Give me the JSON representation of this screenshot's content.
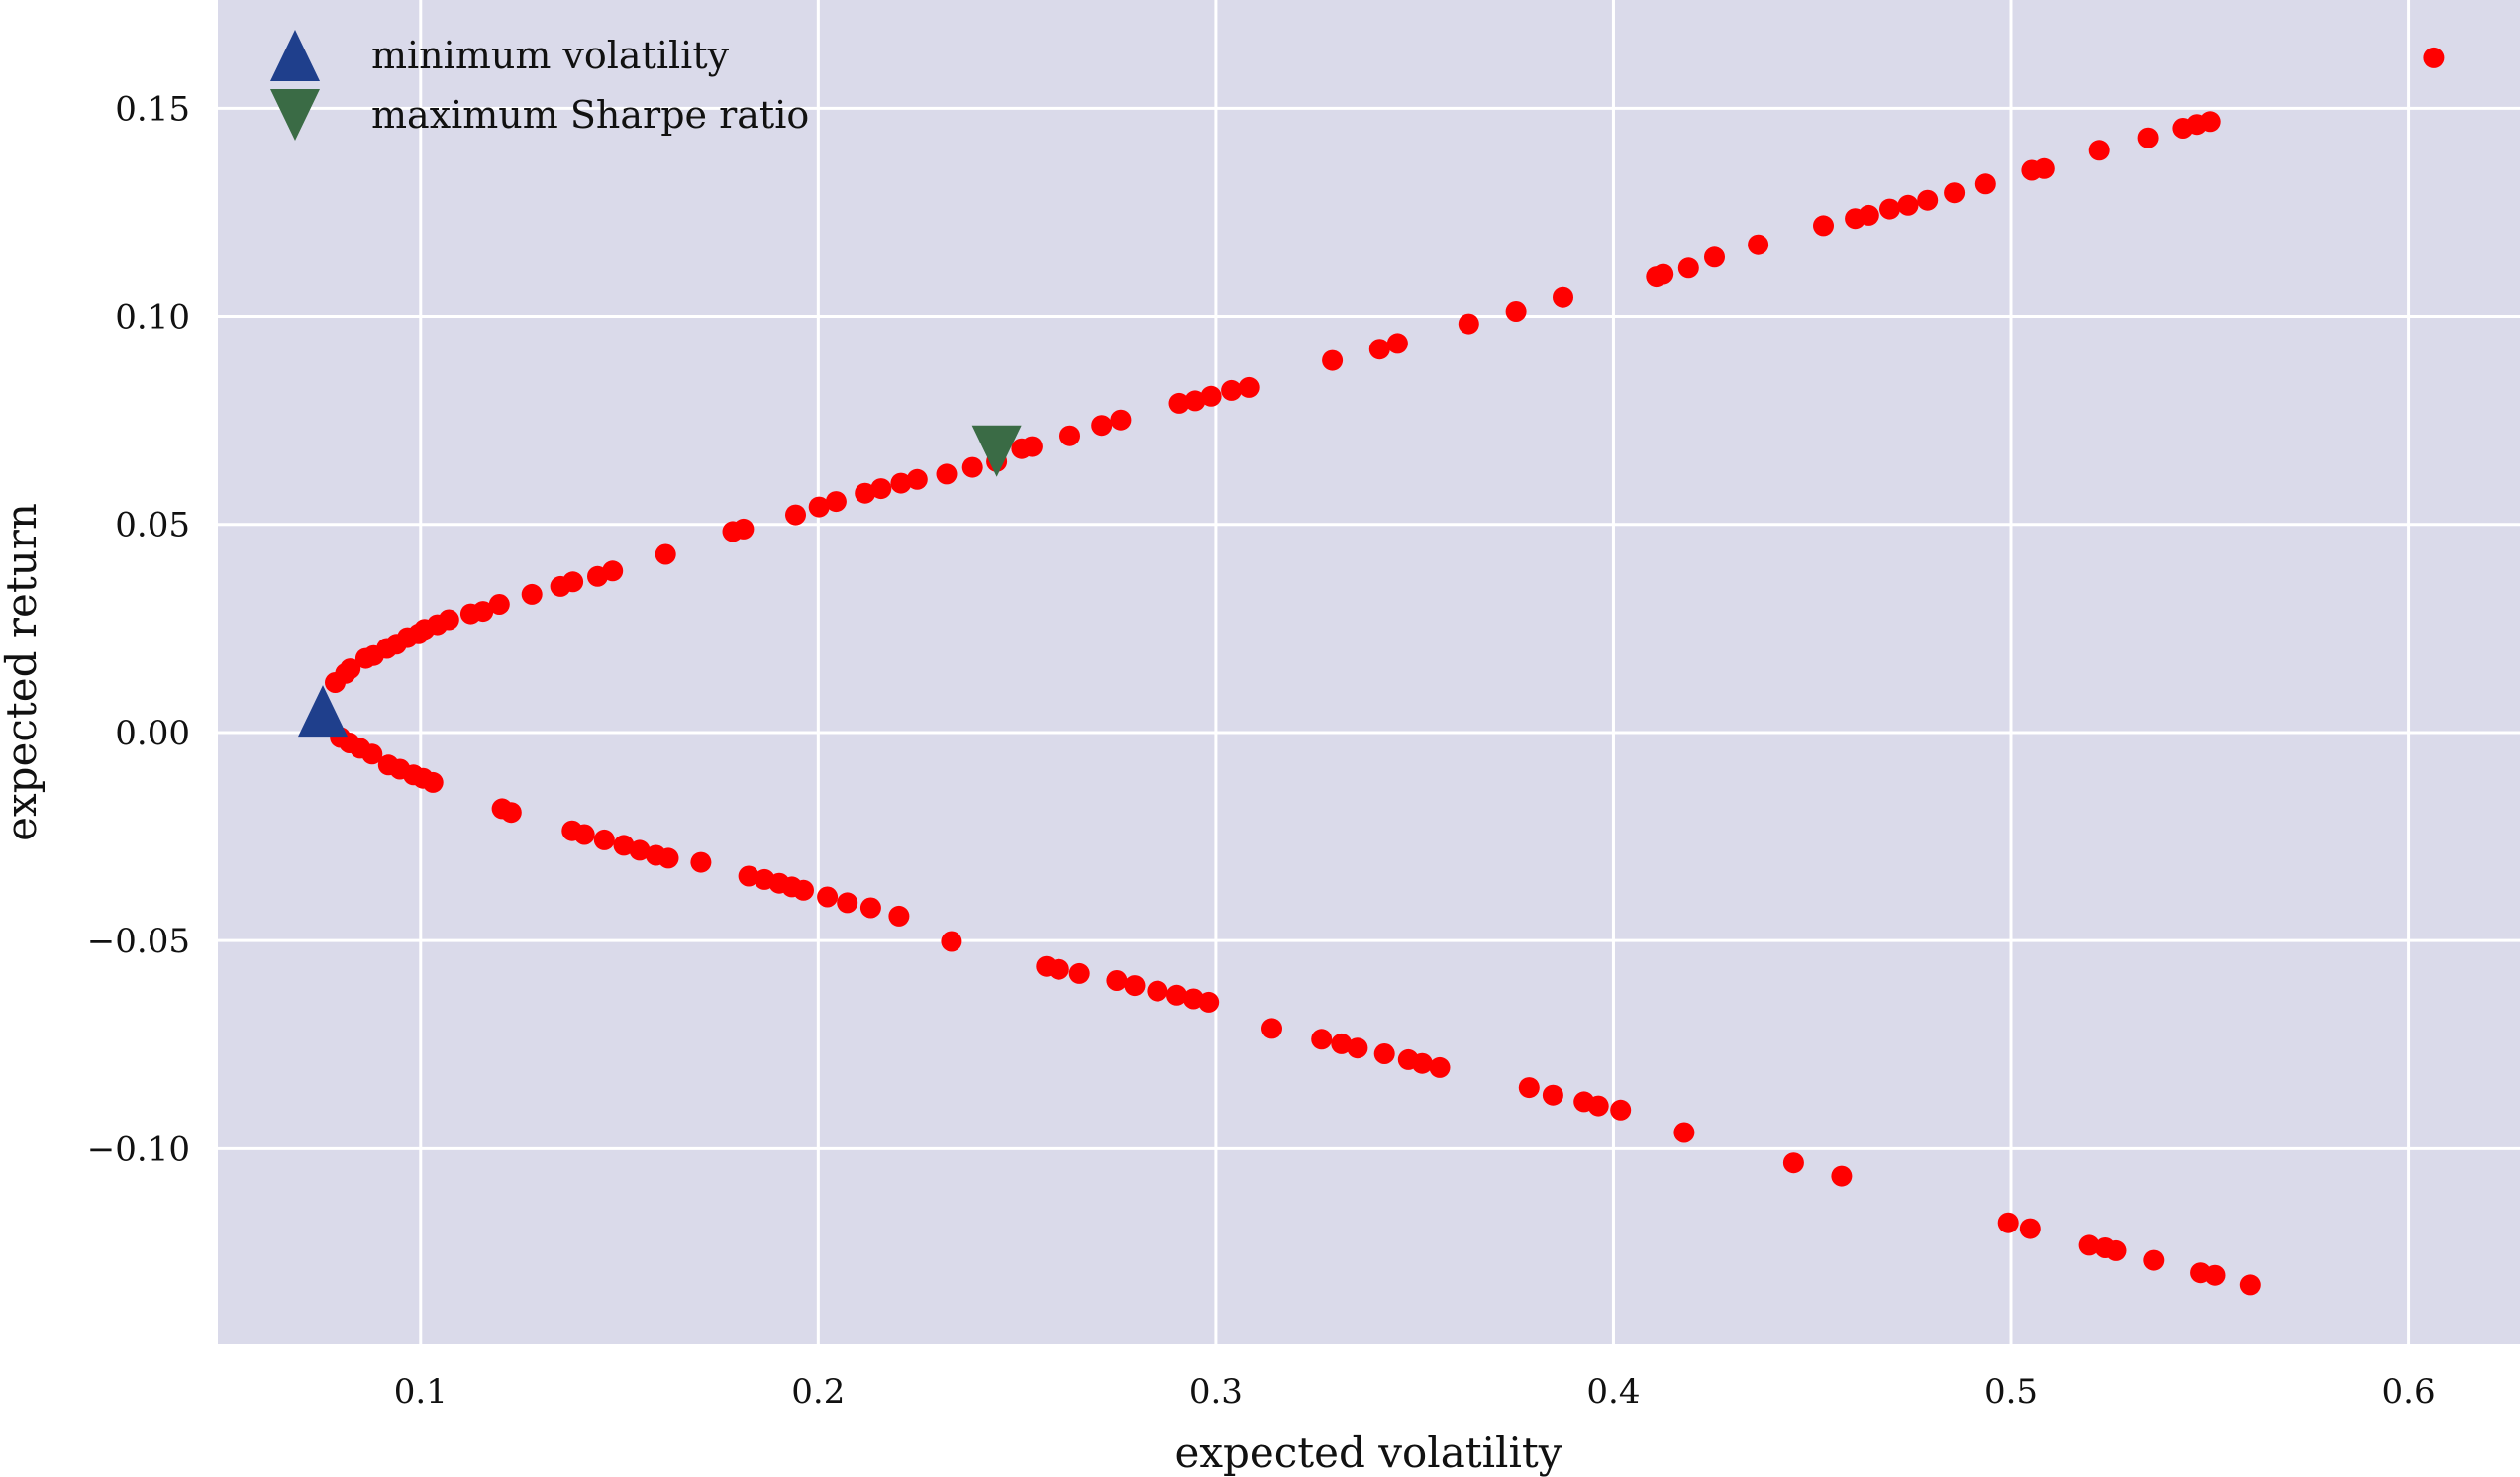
{
  "chart_data": {
    "type": "scatter",
    "xlabel": "expected volatility",
    "ylabel": "expected return",
    "xlim": [
      0.049,
      0.628
    ],
    "ylim": [
      -0.147,
      0.176
    ],
    "xticks": [
      0.1,
      0.2,
      0.3,
      0.4,
      0.5,
      0.6
    ],
    "xtick_labels": [
      "0.1",
      "0.2",
      "0.3",
      "0.4",
      "0.5",
      "0.6"
    ],
    "yticks": [
      -0.1,
      -0.05,
      0.0,
      0.05,
      0.1,
      0.15
    ],
    "ytick_labels": [
      "−0.10",
      "−0.05",
      "0.00",
      "0.05",
      "0.10",
      "0.15"
    ],
    "grid": true,
    "background_color": "#dadaea",
    "legend_position": "top-left",
    "legend": [
      {
        "label": "minimum volatility",
        "marker": "triangle-up",
        "color": "#1f3f8c"
      },
      {
        "label": "maximum Sharpe ratio",
        "marker": "triangle-down",
        "color": "#3a6b45"
      }
    ],
    "special_points": {
      "min_volatility": {
        "x": 0.0754,
        "y": 0.0052,
        "color": "#1f3f8c"
      },
      "max_sharpe": {
        "x": 0.2449,
        "y": 0.0676,
        "color": "#3a6b45"
      }
    },
    "point_color": "#ff0000",
    "series": [
      {
        "values": [
          [
            0.0785,
            0.012
          ],
          [
            0.0811,
            0.0142
          ],
          [
            0.0823,
            0.0153
          ],
          [
            0.0862,
            0.0178
          ],
          [
            0.0882,
            0.0185
          ],
          [
            0.0915,
            0.0202
          ],
          [
            0.0939,
            0.0212
          ],
          [
            0.0967,
            0.0228
          ],
          [
            0.0995,
            0.0237
          ],
          [
            0.101,
            0.0248
          ],
          [
            0.1042,
            0.0259
          ],
          [
            0.1071,
            0.0271
          ],
          [
            0.1126,
            0.0285
          ],
          [
            0.1157,
            0.0291
          ],
          [
            0.1198,
            0.0308
          ],
          [
            0.128,
            0.0332
          ],
          [
            0.1352,
            0.0351
          ],
          [
            0.1383,
            0.0362
          ],
          [
            0.1445,
            0.0375
          ],
          [
            0.1483,
            0.0388
          ],
          [
            0.1616,
            0.0428
          ],
          [
            0.1785,
            0.0483
          ],
          [
            0.1812,
            0.0489
          ],
          [
            0.1943,
            0.0523
          ],
          [
            0.2002,
            0.0542
          ],
          [
            0.2045,
            0.0555
          ],
          [
            0.2118,
            0.0575
          ],
          [
            0.2158,
            0.0586
          ],
          [
            0.2208,
            0.0599
          ],
          [
            0.2249,
            0.0608
          ],
          [
            0.2323,
            0.0621
          ],
          [
            0.2388,
            0.0637
          ],
          [
            0.2449,
            0.0651
          ],
          [
            0.2512,
            0.0682
          ],
          [
            0.2538,
            0.0687
          ],
          [
            0.2633,
            0.0713
          ],
          [
            0.2713,
            0.0738
          ],
          [
            0.2761,
            0.0751
          ],
          [
            0.2908,
            0.0791
          ],
          [
            0.2948,
            0.0797
          ],
          [
            0.2988,
            0.0808
          ],
          [
            0.3039,
            0.0822
          ],
          [
            0.3083,
            0.0829
          ],
          [
            0.3293,
            0.0894
          ],
          [
            0.3412,
            0.0921
          ],
          [
            0.3457,
            0.0935
          ],
          [
            0.3636,
            0.0982
          ],
          [
            0.3755,
            0.1012
          ],
          [
            0.3873,
            0.1046
          ],
          [
            0.4108,
            0.1095
          ],
          [
            0.4125,
            0.1101
          ],
          [
            0.4189,
            0.1116
          ],
          [
            0.4254,
            0.1142
          ],
          [
            0.4364,
            0.1172
          ],
          [
            0.4528,
            0.1218
          ],
          [
            0.4608,
            0.1235
          ],
          [
            0.4642,
            0.1243
          ],
          [
            0.4695,
            0.1258
          ],
          [
            0.4741,
            0.1267
          ],
          [
            0.479,
            0.1279
          ],
          [
            0.4857,
            0.1297
          ],
          [
            0.4936,
            0.1318
          ],
          [
            0.5052,
            0.1351
          ],
          [
            0.5083,
            0.1355
          ],
          [
            0.5222,
            0.1399
          ],
          [
            0.5344,
            0.1429
          ],
          [
            0.5433,
            0.1452
          ],
          [
            0.5468,
            0.1461
          ],
          [
            0.5501,
            0.1468
          ],
          [
            0.6063,
            0.1621
          ],
          [
            0.0798,
            -0.0012
          ],
          [
            0.0821,
            -0.0025
          ],
          [
            0.0848,
            -0.0038
          ],
          [
            0.0878,
            -0.0052
          ],
          [
            0.0919,
            -0.0078
          ],
          [
            0.0948,
            -0.0088
          ],
          [
            0.0982,
            -0.0102
          ],
          [
            0.1006,
            -0.011
          ],
          [
            0.1031,
            -0.012
          ],
          [
            0.1205,
            -0.0183
          ],
          [
            0.1228,
            -0.0192
          ],
          [
            0.1381,
            -0.0236
          ],
          [
            0.1412,
            -0.0245
          ],
          [
            0.1462,
            -0.0258
          ],
          [
            0.1511,
            -0.0271
          ],
          [
            0.1551,
            -0.0283
          ],
          [
            0.1592,
            -0.0295
          ],
          [
            0.1623,
            -0.0302
          ],
          [
            0.1705,
            -0.0312
          ],
          [
            0.1825,
            -0.0345
          ],
          [
            0.1865,
            -0.0353
          ],
          [
            0.1902,
            -0.0362
          ],
          [
            0.1934,
            -0.0371
          ],
          [
            0.1963,
            -0.0379
          ],
          [
            0.2023,
            -0.0395
          ],
          [
            0.2073,
            -0.0409
          ],
          [
            0.2132,
            -0.0421
          ],
          [
            0.2203,
            -0.0441
          ],
          [
            0.2335,
            -0.0502
          ],
          [
            0.2574,
            -0.0562
          ],
          [
            0.2605,
            -0.0569
          ],
          [
            0.2657,
            -0.0579
          ],
          [
            0.2751,
            -0.0596
          ],
          [
            0.2796,
            -0.0608
          ],
          [
            0.2853,
            -0.0621
          ],
          [
            0.2902,
            -0.0631
          ],
          [
            0.2944,
            -0.064
          ],
          [
            0.2982,
            -0.0648
          ],
          [
            0.3141,
            -0.0711
          ],
          [
            0.3266,
            -0.0737
          ],
          [
            0.3316,
            -0.0748
          ],
          [
            0.3356,
            -0.0758
          ],
          [
            0.3424,
            -0.0772
          ],
          [
            0.3484,
            -0.0786
          ],
          [
            0.3519,
            -0.0795
          ],
          [
            0.3563,
            -0.0805
          ],
          [
            0.3788,
            -0.0853
          ],
          [
            0.3848,
            -0.0871
          ],
          [
            0.3926,
            -0.0887
          ],
          [
            0.3962,
            -0.0897
          ],
          [
            0.4018,
            -0.0907
          ],
          [
            0.4178,
            -0.0961
          ],
          [
            0.4453,
            -0.1034
          ],
          [
            0.4574,
            -0.1066
          ],
          [
            0.4993,
            -0.1178
          ],
          [
            0.5048,
            -0.1192
          ],
          [
            0.5197,
            -0.1232
          ],
          [
            0.5237,
            -0.1238
          ],
          [
            0.5264,
            -0.1245
          ],
          [
            0.5358,
            -0.1268
          ],
          [
            0.5477,
            -0.1298
          ],
          [
            0.5513,
            -0.1304
          ],
          [
            0.5601,
            -0.1327
          ]
        ]
      }
    ]
  }
}
